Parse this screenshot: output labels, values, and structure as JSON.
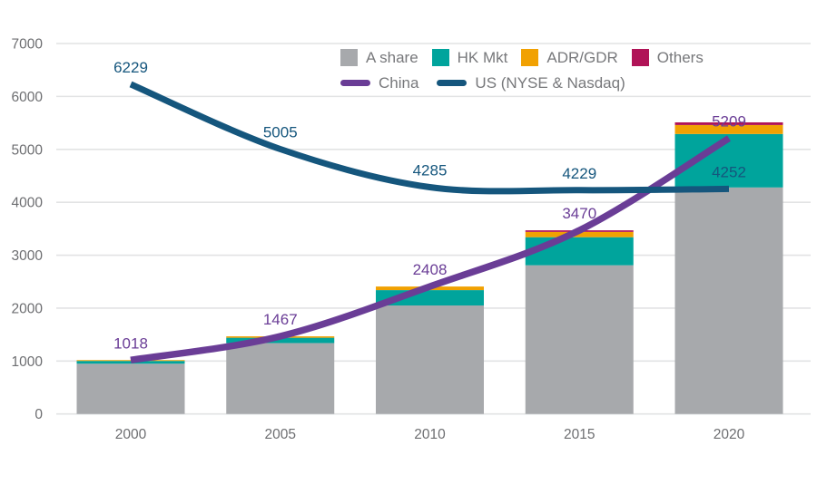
{
  "chart_data": {
    "type": "combo_stacked_bar_line",
    "title": "",
    "xlabel": "",
    "ylabel": "",
    "x_categories": [
      "2000",
      "2005",
      "2010",
      "2015",
      "2020"
    ],
    "y_axis": {
      "min": 0,
      "max": 7000,
      "step": 1000,
      "ticks": [
        0,
        1000,
        2000,
        3000,
        4000,
        5000,
        6000,
        7000
      ]
    },
    "grid": true,
    "legend_position": "top",
    "bar_series": [
      {
        "name": "A share",
        "color": "#a7a9ac",
        "values": [
          950,
          1340,
          2050,
          2810,
          4280
        ]
      },
      {
        "name": "HK Mkt",
        "color": "#00a49c",
        "values": [
          52,
          100,
          290,
          530,
          1010
        ]
      },
      {
        "name": "ADR/GDR",
        "color": "#f1a102",
        "values": [
          16,
          27,
          68,
          100,
          170
        ]
      },
      {
        "name": "Others",
        "color": "#b01357",
        "values": [
          0,
          0,
          0,
          30,
          50
        ]
      }
    ],
    "line_series": [
      {
        "name": "China",
        "color": "#6a3d96",
        "stroke_width": 7.5,
        "values": [
          1018,
          1467,
          2408,
          3470,
          5209
        ],
        "point_labels": [
          "1018",
          "1467",
          "2408",
          "3470",
          "5209"
        ]
      },
      {
        "name": "US (NYSE & Nasdaq)",
        "color": "#15567d",
        "stroke_width": 7,
        "values": [
          6229,
          5005,
          4285,
          4229,
          4252
        ],
        "point_labels": [
          "6229",
          "5005",
          "4285",
          "4229",
          "4252"
        ]
      }
    ]
  },
  "colors": {
    "grid_line": "#e2e3e4",
    "axis_text": "#6d6e71",
    "legend_text": "#77787b",
    "background": "#ffffff"
  }
}
